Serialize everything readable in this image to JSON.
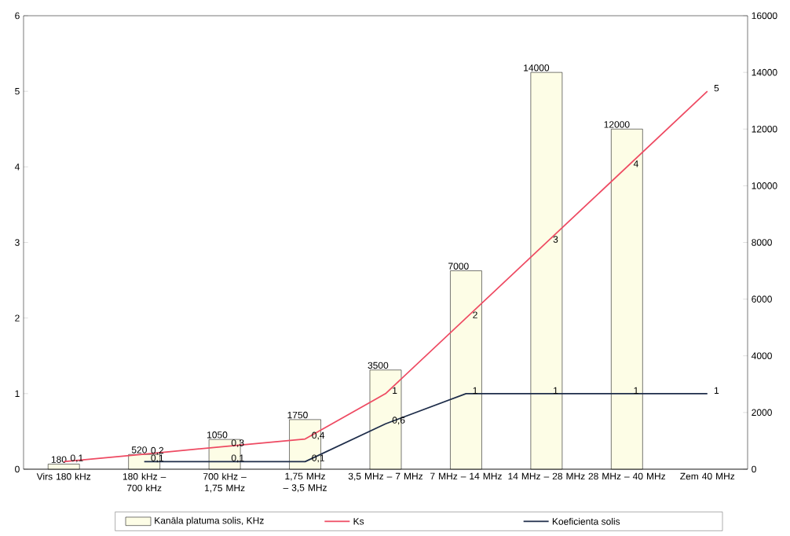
{
  "chart_data": {
    "type": "line",
    "categories": [
      "Virs 180 kHz",
      "180 kHz – 700 kHz",
      "700 kHz – 1,75 MHz",
      "1,75 MHz – 3,5 MHz",
      "3,5 MHz – 7 MHz",
      "7 MHz – 14 MHz",
      "14 MHz – 28 MHz",
      "28 MHz – 40 MHz",
      "Zem 40 MHz"
    ],
    "ylim": [
      0,
      6
    ],
    "yticks": [
      0,
      1,
      2,
      3,
      4,
      5,
      6
    ],
    "y2lim": [
      0,
      16000
    ],
    "y2ticks": [
      0,
      2000,
      4000,
      6000,
      8000,
      10000,
      12000,
      14000,
      16000
    ],
    "legend": "bottom",
    "marker": "none",
    "series": [
      {
        "name": "Kanāla platuma solis, KHz",
        "type": "bar",
        "axis": "y2",
        "color": "#fdfde6",
        "values": [
          180,
          520,
          1050,
          1750,
          3500,
          7000,
          14000,
          12000,
          null
        ],
        "value_labels": [
          "180",
          "520",
          "1050",
          "1750",
          "3500",
          "7000",
          "14000",
          "12000",
          null
        ]
      },
      {
        "name": "Ks",
        "color": "#ee4a62",
        "values": [
          0.1,
          0.2,
          0.3,
          0.4,
          1,
          2,
          3,
          4,
          5
        ],
        "value_labels": [
          "0,1",
          "0,2",
          "0,3",
          "0,4",
          "1",
          "2",
          "3",
          "4",
          "5"
        ]
      },
      {
        "name": "Koeficienta solis",
        "color": "#1e2d4a",
        "values": [
          null,
          0.1,
          0.1,
          0.1,
          0.6,
          1,
          1,
          1,
          1
        ],
        "value_labels": [
          null,
          "0,1",
          "0,1",
          "0,1",
          "0,6",
          "1",
          "1",
          "1",
          "1"
        ]
      }
    ]
  }
}
